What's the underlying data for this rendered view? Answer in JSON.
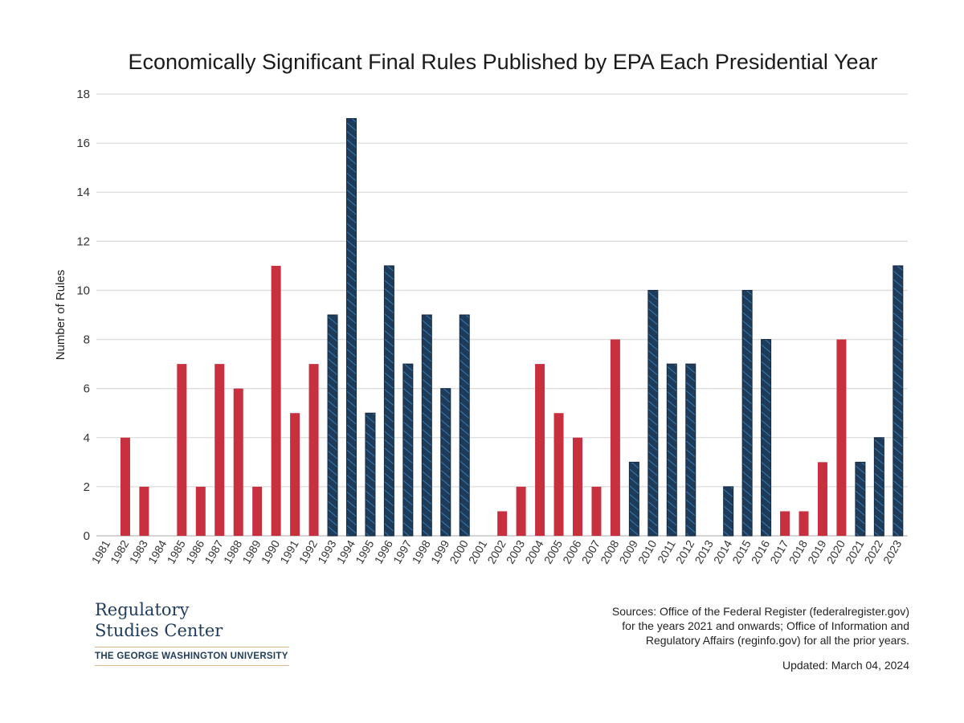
{
  "chart_data": {
    "type": "bar",
    "title": "Economically Significant Final Rules Published by EPA Each Presidential Year",
    "xlabel": "",
    "ylabel": "Number of Rules",
    "ylim": [
      0,
      18
    ],
    "yticks": [
      0,
      2,
      4,
      6,
      8,
      10,
      12,
      14,
      16,
      18
    ],
    "grid": true,
    "categories": [
      "1981",
      "1982",
      "1983",
      "1984",
      "1985",
      "1986",
      "1987",
      "1988",
      "1989",
      "1990",
      "1991",
      "1992",
      "1993",
      "1994",
      "1995",
      "1996",
      "1997",
      "1998",
      "1999",
      "2000",
      "2001",
      "2002",
      "2003",
      "2004",
      "2005",
      "2006",
      "2007",
      "2008",
      "2009",
      "2010",
      "2011",
      "2012",
      "2013",
      "2014",
      "2015",
      "2016",
      "2017",
      "2018",
      "2019",
      "2020",
      "2021",
      "2022",
      "2023"
    ],
    "values": [
      0,
      4,
      2,
      0,
      7,
      2,
      7,
      6,
      2,
      11,
      5,
      7,
      9,
      17,
      5,
      11,
      7,
      9,
      6,
      9,
      0,
      1,
      2,
      7,
      5,
      4,
      2,
      8,
      3,
      10,
      7,
      7,
      0,
      2,
      10,
      8,
      1,
      1,
      3,
      8,
      3,
      4,
      11
    ],
    "party": [
      "R",
      "R",
      "R",
      "R",
      "R",
      "R",
      "R",
      "R",
      "R",
      "R",
      "R",
      "R",
      "D",
      "D",
      "D",
      "D",
      "D",
      "D",
      "D",
      "D",
      "R",
      "R",
      "R",
      "R",
      "R",
      "R",
      "R",
      "R",
      "D",
      "D",
      "D",
      "D",
      "D",
      "D",
      "D",
      "D",
      "R",
      "R",
      "R",
      "R",
      "D",
      "D",
      "D"
    ],
    "colors": {
      "R": "#c8303f",
      "D": "#1f3b5a",
      "D_stripe": "#3a8fd0"
    }
  },
  "logo": {
    "line1": "Regulatory",
    "line2": "Studies Center",
    "line3": "THE GEORGE WASHINGTON UNIVERSITY"
  },
  "sources": {
    "line1": "Sources: Office of the Federal Register (federalregister.gov)",
    "line2": "for the years 2021 and onwards; Office of Information and",
    "line3": "Regulatory Affairs (reginfo.gov) for all the prior years."
  },
  "updated": "Updated: March 04, 2024"
}
